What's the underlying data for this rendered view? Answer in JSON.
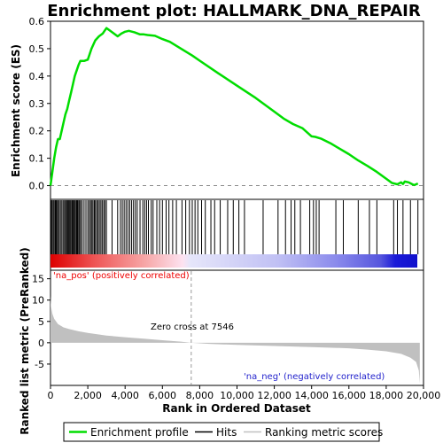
{
  "chart_data": [
    {
      "type": "line",
      "title": "Enrichment plot: HALLMARK_DNA_REPAIR",
      "ylabel": "Enrichment score (ES)",
      "xlim": [
        0,
        20000
      ],
      "ylim": [
        -0.05,
        0.6
      ],
      "y_ticks": [
        "0.0",
        "0.1",
        "0.2",
        "0.3",
        "0.4",
        "0.5",
        "0.6"
      ],
      "y_tick_values": [
        0.0,
        0.1,
        0.2,
        0.3,
        0.4,
        0.5,
        0.6
      ],
      "series": [
        {
          "name": "Enrichment profile",
          "color": "#00dd00",
          "x": [
            0,
            100,
            200,
            300,
            400,
            500,
            600,
            700,
            800,
            900,
            1000,
            1100,
            1200,
            1300,
            1400,
            1500,
            1600,
            1800,
            2000,
            2200,
            2400,
            2600,
            2800,
            2900,
            3000,
            3200,
            3400,
            3600,
            3800,
            4000,
            4200,
            4500,
            4800,
            5000,
            5200,
            5600,
            6000,
            6400,
            7000,
            7600,
            8000,
            9000,
            10000,
            11000,
            12000,
            12500,
            13000,
            13500,
            14000,
            14200,
            14500,
            15000,
            15500,
            16000,
            16500,
            17000,
            17500,
            18000,
            18300,
            18600,
            18800,
            18900,
            19000,
            19200,
            19400,
            19500,
            19700
          ],
          "y": [
            0.0,
            0.05,
            0.1,
            0.14,
            0.17,
            0.17,
            0.2,
            0.23,
            0.26,
            0.28,
            0.31,
            0.34,
            0.37,
            0.4,
            0.42,
            0.44,
            0.455,
            0.455,
            0.46,
            0.5,
            0.53,
            0.545,
            0.555,
            0.565,
            0.575,
            0.565,
            0.555,
            0.545,
            0.555,
            0.562,
            0.565,
            0.56,
            0.552,
            0.552,
            0.55,
            0.547,
            0.535,
            0.525,
            0.5,
            0.475,
            0.456,
            0.41,
            0.365,
            0.32,
            0.27,
            0.245,
            0.225,
            0.21,
            0.18,
            0.178,
            0.172,
            0.155,
            0.135,
            0.115,
            0.092,
            0.072,
            0.05,
            0.025,
            0.01,
            0.005,
            0.012,
            0.006,
            0.015,
            0.012,
            0.005,
            0.002,
            0.008
          ]
        }
      ]
    },
    {
      "type": "scatter",
      "name": "Hits",
      "hit_positions": [
        40,
        90,
        150,
        200,
        260,
        310,
        370,
        420,
        480,
        560,
        620,
        700,
        760,
        820,
        870,
        930,
        980,
        1030,
        1080,
        1140,
        1190,
        1240,
        1290,
        1340,
        1400,
        1450,
        1510,
        1560,
        1620,
        1700,
        1800,
        1900,
        2000,
        2080,
        2150,
        2220,
        2280,
        2350,
        2410,
        2480,
        2550,
        2620,
        2700,
        2770,
        2850,
        2920,
        3000,
        3300,
        3600,
        3750,
        3850,
        3950,
        4050,
        4150,
        4250,
        4350,
        4450,
        4550,
        4650,
        4800,
        4950,
        5050,
        5150,
        5250,
        5400,
        5500,
        5700,
        5850,
        6000,
        6200,
        6350,
        6550,
        6750,
        7050,
        7250,
        7450,
        7600,
        7750,
        7900,
        8100,
        8300,
        8600,
        8800,
        9100,
        9500,
        9800,
        10100,
        10400,
        11400,
        12200,
        12600,
        12900,
        13100,
        13400,
        13900,
        14100,
        14250,
        14400,
        15300,
        15700,
        16500,
        17100,
        17500,
        18400,
        18600,
        18900,
        19300,
        19700
      ]
    },
    {
      "type": "area",
      "ylabel": "Ranked list metric (PreRanked)",
      "xlabel": "Rank in Ordered Dataset",
      "xlim": [
        0,
        20000
      ],
      "ylim": [
        -10,
        17
      ],
      "x_ticks": [
        "0",
        "2,000",
        "4,000",
        "6,000",
        "8,000",
        "10,000",
        "12,000",
        "14,000",
        "16,000",
        "18,000",
        "20,000"
      ],
      "x_tick_values": [
        0,
        2000,
        4000,
        6000,
        8000,
        10000,
        12000,
        14000,
        16000,
        18000,
        20000
      ],
      "y_ticks": [
        "15",
        "10",
        "5",
        "0",
        "-5"
      ],
      "y_tick_values": [
        15,
        10,
        5,
        0,
        -5
      ],
      "x": [
        0,
        30,
        100,
        200,
        400,
        700,
        1000,
        1500,
        2000,
        3000,
        4000,
        5000,
        6000,
        7000,
        7546,
        8500,
        10000,
        12000,
        14000,
        16000,
        17000,
        18000,
        18800,
        19300,
        19600,
        19750,
        19800
      ],
      "values": [
        11,
        8.5,
        6.8,
        5.6,
        4.4,
        3.6,
        3.2,
        2.7,
        2.3,
        1.7,
        1.3,
        0.95,
        0.6,
        0.25,
        0.0,
        -0.25,
        -0.5,
        -0.75,
        -1.0,
        -1.3,
        -1.6,
        -2.0,
        -2.6,
        -3.5,
        -4.5,
        -6.5,
        -9.5
      ],
      "zero_cross_at": 7546,
      "annotations": {
        "pos": "'na_pos' (positively correlated)",
        "neg": "'na_neg' (negatively correlated)",
        "zero": "Zero cross at 7546"
      }
    }
  ],
  "legend": {
    "items": [
      {
        "label": "Enrichment profile",
        "color": "#00dd00"
      },
      {
        "label": "Hits",
        "color": "#000000"
      },
      {
        "label": "Ranking metric scores",
        "color": "#c0c0c0"
      }
    ]
  },
  "colors": {
    "pos_annotation": "#ee0000",
    "neg_annotation": "#2222cc",
    "metric_fill": "#c0c0c0",
    "zero_line": "#999999"
  },
  "ranked_bar_stops": [
    {
      "pos": 0.0,
      "color": "#dd0000"
    },
    {
      "pos": 0.12,
      "color": "#ee5555"
    },
    {
      "pos": 0.26,
      "color": "#f7a8a8"
    },
    {
      "pos": 0.36,
      "color": "#fde2f0"
    },
    {
      "pos": 0.38,
      "color": "#e6e6fa"
    },
    {
      "pos": 0.62,
      "color": "#c0c0f4"
    },
    {
      "pos": 0.78,
      "color": "#8a8aec"
    },
    {
      "pos": 0.9,
      "color": "#5555dd"
    },
    {
      "pos": 0.94,
      "color": "#1a1ad8"
    },
    {
      "pos": 1.0,
      "color": "#1010cc"
    }
  ]
}
